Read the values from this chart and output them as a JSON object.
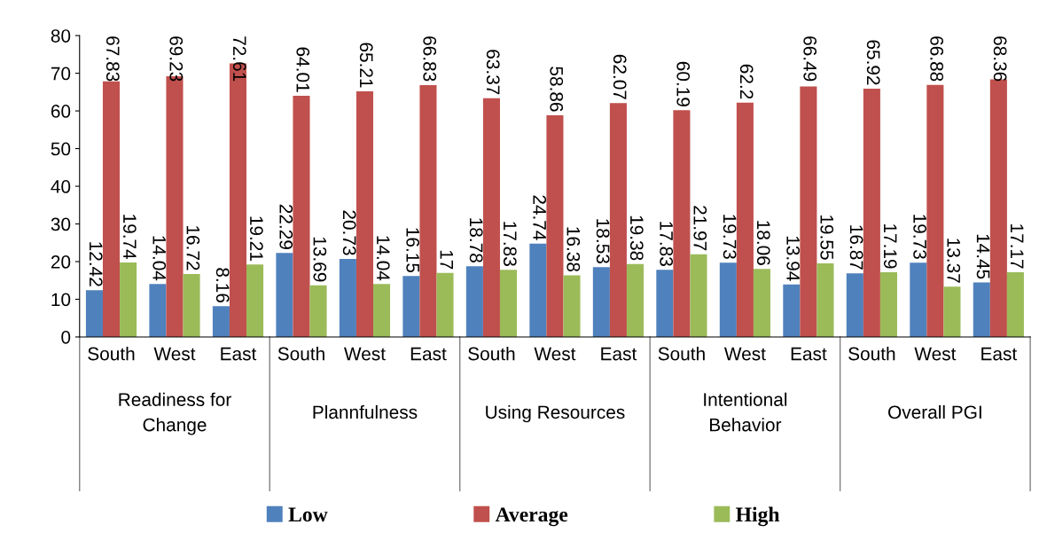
{
  "chart_data": {
    "type": "bar",
    "categories": [
      "South",
      "West",
      "East",
      "South",
      "West",
      "East",
      "South",
      "West",
      "East",
      "South",
      "West",
      "East",
      "South",
      "West",
      "East"
    ],
    "annotations": [
      "Readiness for\nChange",
      "Plannfulness",
      "Using Resources",
      "Intentional\nBehavior",
      "Overall PGI"
    ],
    "series": [
      {
        "name": "Low",
        "color": "#4f81bd",
        "values": [
          12.42,
          14.04,
          8.16,
          22.29,
          20.73,
          16.15,
          18.78,
          24.74,
          18.53,
          17.83,
          19.73,
          13.94,
          16.87,
          19.73,
          14.45
        ]
      },
      {
        "name": "Average",
        "color": "#c0504d",
        "values": [
          67.83,
          69.23,
          72.61,
          64.01,
          65.21,
          66.83,
          63.37,
          58.86,
          62.07,
          60.19,
          62.2,
          66.49,
          65.92,
          66.88,
          68.36
        ]
      },
      {
        "name": "High",
        "color": "#9bbb59",
        "values": [
          19.74,
          16.72,
          19.21,
          13.69,
          14.04,
          17,
          17.83,
          16.38,
          19.38,
          21.97,
          18.06,
          19.55,
          17.19,
          13.37,
          17.17
        ]
      }
    ],
    "ylim": [
      0,
      80
    ],
    "yticks": [
      0,
      10,
      20,
      30,
      40,
      50,
      60,
      70,
      80
    ],
    "data_labels": true,
    "legend": "bottom",
    "grid": false
  }
}
